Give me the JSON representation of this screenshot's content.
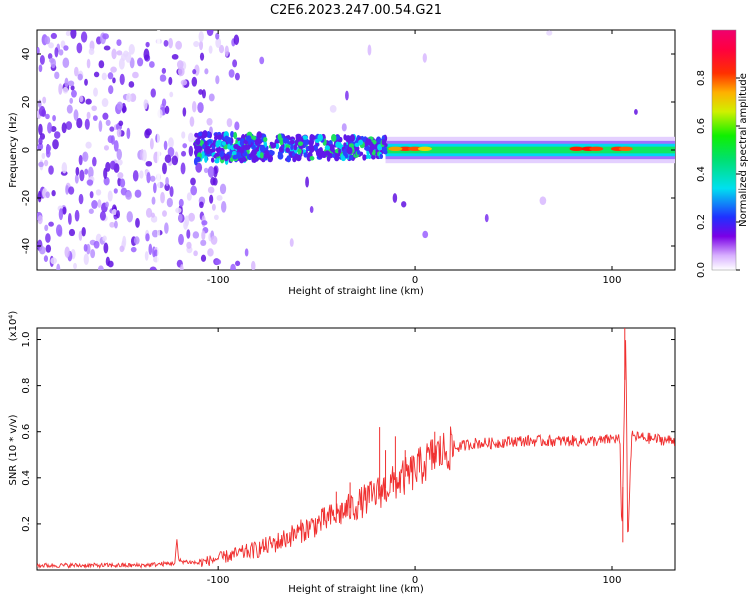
{
  "title": "C2E6.2023.247.00.54.G21",
  "chart_data": [
    {
      "type": "heatmap",
      "xlabel": "Height of straight line (km)",
      "ylabel": "Frequency (Hz)",
      "xlim": [
        -192,
        132
      ],
      "ylim": [
        -50,
        50
      ],
      "xticks": [
        -100,
        0,
        100
      ],
      "yticks": [
        -40,
        -20,
        0,
        20,
        40
      ],
      "colorbar": {
        "label": "Normalized spectral amplitude",
        "range": [
          0.0,
          1.0
        ],
        "ticks": [
          0.0,
          0.2,
          0.4,
          0.6,
          0.8
        ],
        "colors": [
          "#ffffff",
          "#7a00e6",
          "#2040ff",
          "#00e0f0",
          "#00f000",
          "#f0f000",
          "#ff8000",
          "#ff0000",
          "#f0006e"
        ]
      },
      "description_points": [
        {
          "x": -150,
          "noise": "high"
        },
        {
          "x": -95,
          "noise": "fading"
        },
        {
          "x": -20,
          "noise": "low"
        },
        {
          "x": 0,
          "peak": 0.85
        },
        {
          "x": 85,
          "peak": 0.9
        },
        {
          "x": 105,
          "peak": 0.85
        }
      ]
    },
    {
      "type": "line",
      "xlabel": "Height of straight line (km)",
      "ylabel": "SNR (10 * v/v)",
      "y_multiplier_label": "(x10⁴)",
      "xlim": [
        -192,
        132
      ],
      "ylim": [
        0,
        1.05
      ],
      "xticks": [
        -100,
        0,
        100
      ],
      "yticks": [
        0.2,
        0.4,
        0.6,
        0.8,
        1.0
      ],
      "series": [
        {
          "color": "#f03030",
          "x": [
            -192,
            -180,
            -160,
            -140,
            -130,
            -122,
            -121,
            -120,
            -110,
            -100,
            -90,
            -80,
            -70,
            -60,
            -50,
            -40,
            -30,
            -20,
            -10,
            0,
            10,
            20,
            30,
            40,
            50,
            60,
            70,
            80,
            90,
            95,
            100,
            104,
            105,
            106,
            107,
            108,
            110,
            120,
            132
          ],
          "y": [
            0.02,
            0.02,
            0.02,
            0.02,
            0.025,
            0.03,
            0.13,
            0.04,
            0.03,
            0.05,
            0.07,
            0.09,
            0.12,
            0.16,
            0.2,
            0.24,
            0.28,
            0.33,
            0.38,
            0.43,
            0.5,
            0.53,
            0.55,
            0.55,
            0.56,
            0.56,
            0.56,
            0.56,
            0.56,
            0.56,
            0.57,
            0.57,
            0.12,
            0.6,
            1.05,
            0.12,
            0.58,
            0.57,
            0.56
          ],
          "spikes": [
            {
              "x": -60,
              "y": 0.18
            },
            {
              "x": -40,
              "y": 0.34
            },
            {
              "x": -33,
              "y": 0.38
            },
            {
              "x": -18,
              "y": 0.62
            },
            {
              "x": -15,
              "y": 0.52
            },
            {
              "x": -10,
              "y": 0.58
            },
            {
              "x": -5,
              "y": 0.52
            },
            {
              "x": 10,
              "y": 0.6
            },
            {
              "x": 106.5,
              "y": 1.05
            },
            {
              "x": 105.5,
              "y": 0.12
            }
          ]
        }
      ]
    }
  ]
}
